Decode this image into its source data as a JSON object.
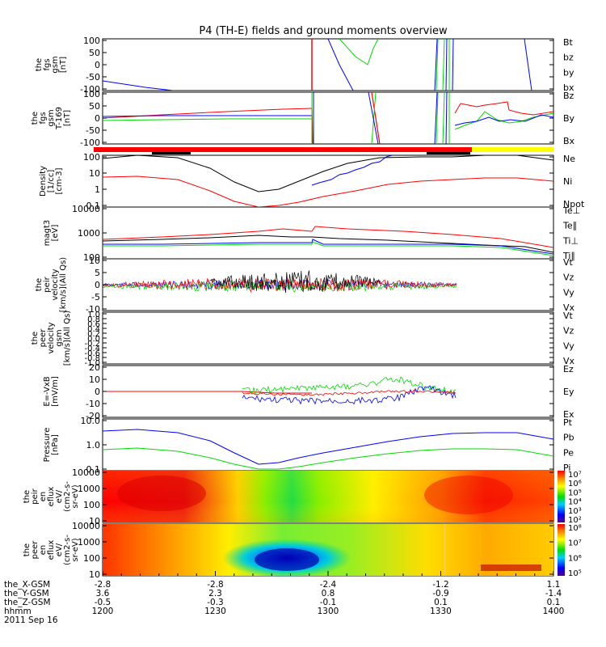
{
  "colors": {
    "black": "#000000",
    "red": "#ff0000",
    "green": "#00dd00",
    "blue": "#0000ff",
    "yellow": "#ffff00",
    "bar_red": "#ff0000"
  },
  "title": "P4 (TH-E) fields and ground moments overview",
  "date_label": "2011 Sep 16",
  "chart_data": {
    "type": "line",
    "title": "P4 (TH-E) fields and ground moments overview",
    "x_axis": {
      "tick_rows": [
        {
          "label": "the_X-GSM",
          "values": [
            "-2.8",
            "-2.8",
            "-2.4",
            "-1.2",
            "1.1"
          ]
        },
        {
          "label": "the_Y-GSM",
          "values": [
            "3.6",
            "2.3",
            "0.8",
            "-0.9",
            "-1.4"
          ]
        },
        {
          "label": "the_Z-GSM",
          "values": [
            "-0.5",
            "-0.3",
            "-0.1",
            "0.1",
            "0.1"
          ]
        },
        {
          "label": "hhmm",
          "values": [
            "1200",
            "1230",
            "1300",
            "1330",
            "1400"
          ]
        }
      ],
      "time_range": [
        "12:00",
        "14:00"
      ]
    },
    "panels": [
      {
        "ylabel": [
          "the",
          "fgs",
          "gsm",
          "[nT]"
        ],
        "ticks": [
          "100",
          "50",
          "0",
          "-50",
          "-100"
        ],
        "ylim": [
          -100,
          100
        ],
        "series": [
          {
            "name": "Bt",
            "color": "#000000"
          },
          {
            "name": "bz",
            "color": "#ff0000"
          },
          {
            "name": "by",
            "color": "#00dd00"
          },
          {
            "name": "bx",
            "color": "#0000ff"
          }
        ]
      },
      {
        "ylabel": [
          "the",
          "fgs",
          "gsm",
          "T-169",
          "[nT]"
        ],
        "ticks": [
          "100",
          "50",
          "0",
          "-50",
          "-100"
        ],
        "ylim": [
          -100,
          100
        ],
        "series": [
          {
            "name": "Bz",
            "color": "#ff0000"
          },
          {
            "name": "By",
            "color": "#00dd00"
          },
          {
            "name": "Bx",
            "color": "#0000ff"
          }
        ]
      },
      {
        "ylabel": [
          "Density",
          "[1/cc]",
          "[cm-3]"
        ],
        "ticks": [
          "100",
          "10",
          "1",
          "0.1"
        ],
        "scale": "log",
        "series": [
          {
            "name": "Ne",
            "color": "#ff0000"
          },
          {
            "name": "Ni",
            "color": "#000000"
          },
          {
            "name": "Npot",
            "color": "#0000ff"
          }
        ]
      },
      {
        "ylabel": [
          "magt3",
          "[eV]"
        ],
        "ticks": [
          "10000",
          "1000",
          "100"
        ],
        "scale": "log",
        "series": [
          {
            "name": "Te⊥",
            "color": "#ff0000"
          },
          {
            "name": "Te∥",
            "color": "#000000"
          },
          {
            "name": "Ti⊥",
            "color": "#0000ff"
          },
          {
            "name": "Ti∥",
            "color": "#00dd00"
          }
        ]
      },
      {
        "ylabel": [
          "the",
          "peir",
          "velocity",
          "[km/s](All Qs)"
        ],
        "ticks": [
          "10",
          "5",
          "0",
          "-5",
          "-10"
        ],
        "ylim": [
          -10,
          10
        ],
        "series": [
          {
            "name": "Vt",
            "color": "#000000"
          },
          {
            "name": "Vz",
            "color": "#ff0000"
          },
          {
            "name": "Vy",
            "color": "#00dd00"
          },
          {
            "name": "Vx",
            "color": "#0000ff"
          }
        ]
      },
      {
        "ylabel": [
          "the",
          "peer",
          "velocity",
          "gsm",
          "[km/s](All Qs)"
        ],
        "ticks": [
          "1.0",
          "0.8",
          "0.6",
          "0.4",
          "0.2",
          "0.0",
          "-0.2",
          "-0.4",
          "-0.6",
          "-0.8",
          "-1.0"
        ],
        "ylim": [
          -1,
          1
        ],
        "series": [
          {
            "name": "Vt",
            "color": "#000000"
          },
          {
            "name": "Vz",
            "color": "#ff0000"
          },
          {
            "name": "Vy",
            "color": "#00dd00"
          },
          {
            "name": "Vx",
            "color": "#0000ff"
          }
        ]
      },
      {
        "ylabel": [
          "E=-VxB",
          "[mV/m]"
        ],
        "ticks": [
          "20",
          "10",
          "0",
          "-10",
          "-20"
        ],
        "ylim": [
          -20,
          20
        ],
        "series": [
          {
            "name": "Ez",
            "color": "#ff0000"
          },
          {
            "name": "Ey",
            "color": "#00dd00"
          },
          {
            "name": "Ex",
            "color": "#0000ff"
          }
        ]
      },
      {
        "ylabel": [
          "Pressure",
          "[nPa]"
        ],
        "ticks": [
          "10.0",
          "1.0",
          "0.1"
        ],
        "scale": "log",
        "series": [
          {
            "name": "Pt",
            "color": "#000000"
          },
          {
            "name": "Pb",
            "color": "#ff0000"
          },
          {
            "name": "Pe",
            "color": "#00dd00"
          },
          {
            "name": "Pi",
            "color": "#0000ff"
          }
        ]
      },
      {
        "ylabel": [
          "the",
          "peir",
          "en",
          "eflux",
          "eV/",
          "(cm2-s-",
          "sr-eV)"
        ],
        "ticks": [
          "10000",
          "1000",
          "100",
          "10"
        ],
        "scale": "log",
        "type": "heatmap",
        "colorbar_labels": [
          "10⁷",
          "10⁶",
          "10⁵",
          "10⁴",
          "10³",
          "10²"
        ]
      },
      {
        "ylabel": [
          "the",
          "peer",
          "en",
          "eflux",
          "eV/",
          "(cm2-s-",
          "sr-eV)"
        ],
        "ticks": [
          "10000",
          "1000",
          "100",
          "10"
        ],
        "scale": "log",
        "type": "heatmap",
        "colorbar_labels": [
          "10⁸",
          "10⁷",
          "10⁶",
          "10⁵"
        ]
      }
    ]
  }
}
